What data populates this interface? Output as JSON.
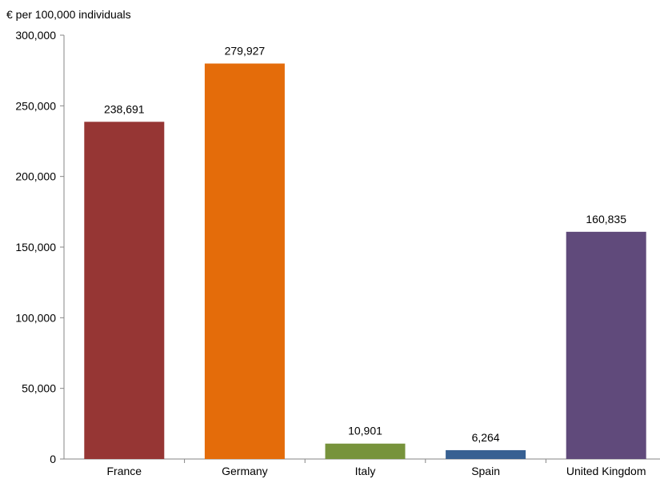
{
  "chart_data": {
    "type": "bar",
    "ylabel": "€ per 100,000 individuals",
    "xlabel": "",
    "categories": [
      "France",
      "Germany",
      "Italy",
      "Spain",
      "United Kingdom"
    ],
    "values": [
      238691,
      279927,
      10901,
      6264,
      160835
    ],
    "data_labels": [
      "238,691",
      "279,927",
      "10,901",
      "6,264",
      "160,835"
    ],
    "colors": [
      "#963634",
      "#E46C0A",
      "#77933C",
      "#376092",
      "#604A7B"
    ],
    "ylim": [
      0,
      300000
    ],
    "yticks": [
      0,
      50000,
      100000,
      150000,
      200000,
      250000,
      300000
    ],
    "ytick_labels": [
      "0",
      "50,000",
      "100,000",
      "150,000",
      "200,000",
      "250,000",
      "300,000"
    ],
    "grid": false,
    "legend": "none"
  }
}
